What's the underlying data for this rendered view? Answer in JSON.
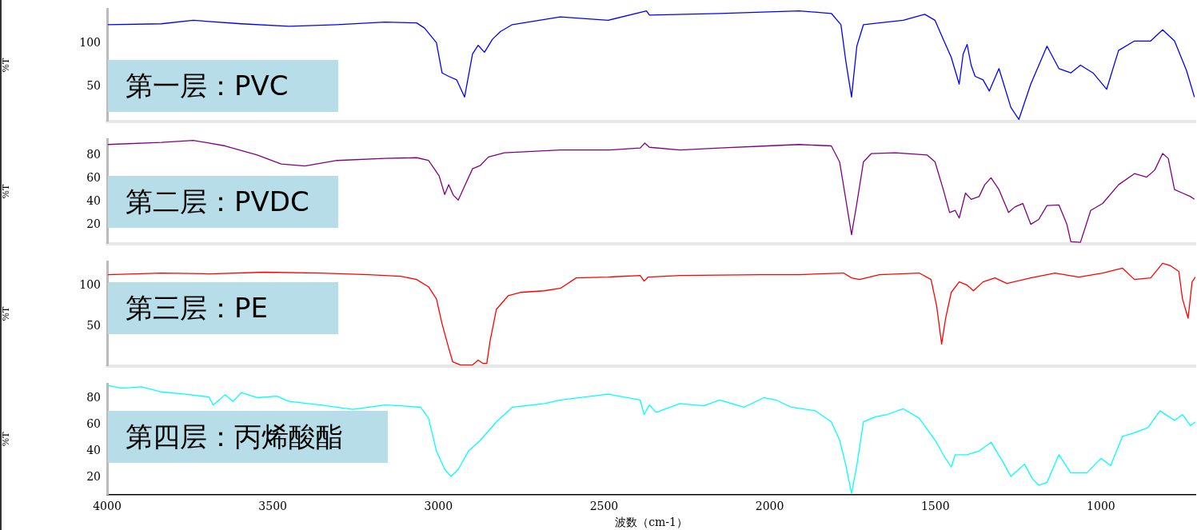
{
  "chart_data": [
    {
      "type": "line",
      "ylabel": "%T",
      "annotations": [
        "第一层：PVC"
      ],
      "xlim": [
        4000,
        715
      ],
      "xticks": [
        4000,
        3500,
        3000,
        2500,
        2000,
        1500,
        1000
      ],
      "tick_labels": "y",
      "ylim": [
        10,
        140
      ],
      "yticks": [
        50,
        100
      ],
      "series": [
        {
          "color": "#0000ff",
          "x": [
            3998,
            3836,
            3740,
            3595,
            3451,
            3306,
            3162,
            3066,
            3042,
            3006,
            2989,
            2969,
            2945,
            2921,
            2897,
            2880,
            2861,
            2837,
            2813,
            2777,
            2632,
            2488,
            2372,
            2363,
            2151,
            1911,
            1814,
            1785,
            1770,
            1753,
            1737,
            1717,
            1669,
            1597,
            1532,
            1501,
            1476,
            1452,
            1428,
            1416,
            1404,
            1392,
            1380,
            1356,
            1337,
            1308,
            1272,
            1248,
            1212,
            1163,
            1127,
            1091,
            1062,
            1024,
            983,
            947,
            899,
            850,
            814,
            778,
            742,
            718
          ],
          "values": [
            122,
            123,
            127,
            123,
            120,
            122,
            125,
            124,
            118,
            101,
            66,
            62,
            58,
            38,
            88,
            98,
            90,
            105,
            114,
            122,
            131,
            127,
            138,
            133,
            135,
            138,
            135,
            122,
            79,
            38,
            97,
            122,
            124,
            127,
            134,
            127,
            105,
            84,
            53,
            88,
            99,
            75,
            62,
            58,
            45,
            71,
            26,
            12,
            53,
            97,
            71,
            66,
            75,
            66,
            47,
            92,
            103,
            103,
            116,
            103,
            69,
            38
          ]
        }
      ]
    },
    {
      "type": "line",
      "ylabel": "%T",
      "annotations": [
        "第二层：PVDC"
      ],
      "xlim": [
        4000,
        715
      ],
      "xticks": [
        4000,
        3500,
        3000,
        2500,
        2000,
        1500,
        1000
      ],
      "tick_labels": "y",
      "ylim": [
        4,
        94
      ],
      "yticks": [
        20,
        40,
        60,
        80
      ],
      "series": [
        {
          "color": "#800080",
          "x": [
            3998,
            3836,
            3740,
            3644,
            3547,
            3475,
            3403,
            3306,
            3162,
            3066,
            3030,
            2998,
            2981,
            2969,
            2955,
            2940,
            2921,
            2897,
            2873,
            2849,
            2801,
            2632,
            2488,
            2391,
            2377,
            2363,
            2271,
            2151,
            2006,
            1911,
            1814,
            1789,
            1770,
            1753,
            1737,
            1717,
            1693,
            1621,
            1525,
            1501,
            1476,
            1457,
            1440,
            1428,
            1409,
            1392,
            1368,
            1351,
            1332,
            1308,
            1279,
            1260,
            1236,
            1212,
            1188,
            1163,
            1127,
            1103,
            1091,
            1062,
            1031,
            995,
            947,
            899,
            862,
            838,
            814,
            797,
            778,
            754,
            730,
            718
          ],
          "values": [
            89.6,
            91.4,
            93.2,
            88.4,
            80.6,
            72.8,
            71,
            75.8,
            77.6,
            78.2,
            75.8,
            62.6,
            46.4,
            54.8,
            45.8,
            41.6,
            53.6,
            68.6,
            71.6,
            78.8,
            82.4,
            84.8,
            84.8,
            86.6,
            90.8,
            87.2,
            84.8,
            86.6,
            88.4,
            89.6,
            88.4,
            74.6,
            41.6,
            11.6,
            38.6,
            74.6,
            81.8,
            82.4,
            80.6,
            74.6,
            50.6,
            30.8,
            32.6,
            26,
            47.6,
            42.2,
            44.6,
            54.8,
            60.8,
            50.6,
            30.8,
            35.6,
            38.6,
            20.6,
            24.8,
            36.8,
            37.4,
            20.6,
            5.6,
            5,
            32.6,
            38.6,
            54.8,
            64.4,
            61.4,
            67.4,
            81.8,
            77.6,
            50.6,
            47.6,
            44.6,
            42.2
          ]
        }
      ]
    },
    {
      "type": "line",
      "ylabel": "%T",
      "annotations": [
        "第三层：PE"
      ],
      "xlim": [
        4000,
        715
      ],
      "xticks": [
        4000,
        3500,
        3000,
        2500,
        2000,
        1500,
        1000
      ],
      "tick_labels": "y",
      "ylim": [
        1,
        130
      ],
      "yticks": [
        50,
        100
      ],
      "series": [
        {
          "color": "#ff0000",
          "x": [
            3998,
            3836,
            3692,
            3523,
            3355,
            3210,
            3114,
            3066,
            3030,
            3006,
            2989,
            2969,
            2957,
            2933,
            2897,
            2880,
            2866,
            2854,
            2844,
            2825,
            2789,
            2753,
            2680,
            2632,
            2584,
            2488,
            2391,
            2379,
            2367,
            2271,
            2030,
            1911,
            1777,
            1753,
            1729,
            1669,
            1549,
            1513,
            1496,
            1481,
            1469,
            1452,
            1428,
            1404,
            1385,
            1356,
            1320,
            1284,
            1212,
            1139,
            1067,
            995,
            935,
            899,
            850,
            814,
            790,
            765,
            754,
            737,
            725,
            715
          ],
          "values": [
            114,
            116,
            115,
            117,
            116,
            114,
            112,
            108,
            99,
            84,
            53,
            23,
            6,
            2,
            2,
            8,
            4,
            4,
            32,
            71,
            88,
            92,
            94,
            97,
            110,
            111,
            113,
            106,
            111,
            113,
            114,
            114,
            116,
            110,
            108,
            114,
            116,
            108,
            75,
            28,
            60,
            92,
            105,
            101,
            94,
            105,
            110,
            103,
            110,
            116,
            111,
            116,
            122,
            108,
            110,
            128,
            125,
            118,
            84,
            60,
            105,
            111
          ]
        }
      ]
    },
    {
      "type": "line",
      "ylabel": "%T",
      "xlabel": "波数（cm-1）",
      "annotations": [
        "第四层：丙烯酸酯"
      ],
      "xlim": [
        4000,
        715
      ],
      "xticks": [
        4000,
        3500,
        3000,
        2500,
        2000,
        1500,
        1000
      ],
      "ylim": [
        7,
        91
      ],
      "yticks": [
        20,
        40,
        60,
        80
      ],
      "series": [
        {
          "color": "#00ffff",
          "x": [
            3998,
            3957,
            3896,
            3836,
            3764,
            3692,
            3680,
            3644,
            3620,
            3595,
            3547,
            3487,
            3451,
            3355,
            3258,
            3162,
            3114,
            3054,
            3030,
            3006,
            2981,
            2962,
            2940,
            2909,
            2873,
            2825,
            2777,
            2680,
            2632,
            2488,
            2391,
            2379,
            2363,
            2343,
            2271,
            2199,
            2151,
            2078,
            2018,
            1982,
            1934,
            1862,
            1814,
            1789,
            1770,
            1753,
            1737,
            1717,
            1681,
            1645,
            1597,
            1549,
            1501,
            1476,
            1452,
            1440,
            1404,
            1368,
            1332,
            1296,
            1272,
            1231,
            1207,
            1188,
            1163,
            1127,
            1091,
            1043,
            1000,
            971,
            935,
            899,
            858,
            822,
            778,
            754,
            730,
            715
          ],
          "values": [
            90,
            87.8,
            88.9,
            85,
            83.3,
            81.1,
            75,
            82.8,
            77.8,
            84.4,
            80.6,
            81.7,
            77.8,
            75,
            71.7,
            75,
            74.4,
            73.3,
            65,
            40,
            26.1,
            20.6,
            26.1,
            40,
            48.3,
            62.2,
            73.3,
            76.1,
            78.9,
            83.3,
            78.9,
            67.8,
            75,
            69.4,
            76.1,
            74.4,
            78.9,
            73.3,
            80.6,
            78.9,
            73.3,
            70.6,
            62.2,
            48.3,
            28.9,
            7.8,
            28.9,
            62.2,
            66.1,
            67.8,
            72.2,
            65,
            48.3,
            37.2,
            27.8,
            37.2,
            37.2,
            40,
            46.7,
            31.7,
            20.6,
            30,
            18.9,
            13.9,
            16.1,
            37.2,
            23.3,
            23.3,
            34.4,
            28.9,
            51.1,
            53.9,
            57.8,
            70.6,
            63.3,
            67.8,
            59.4,
            62.2
          ]
        }
      ]
    }
  ]
}
